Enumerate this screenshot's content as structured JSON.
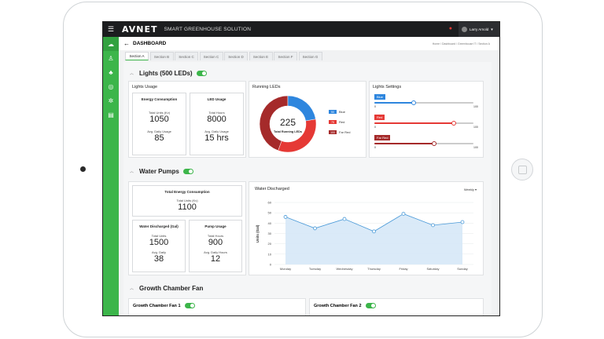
{
  "app": {
    "brand": "AVNET",
    "subtitle": "SMART GREENHOUSE SOLUTION",
    "user": "Larry Arnold"
  },
  "page": {
    "title": "DASHBOARD",
    "breadcrumb": "Home  /  Dashboard  /  Greenhouse IT  /  Section A"
  },
  "tabs": [
    "Section A",
    "Section B",
    "Section C",
    "Section C",
    "Section D",
    "Section E",
    "Section F",
    "Section G"
  ],
  "lights": {
    "title": "Lights (500 LEDs)",
    "usage": {
      "title": "Lights Usage",
      "energy": {
        "title": "Energy Consumption",
        "units_label": "Total Units (Kv)",
        "units": "1050",
        "daily_label": "Avg. Daily Usage",
        "daily": "85"
      },
      "led": {
        "title": "LED Usage",
        "hours_label": "Total Hours",
        "hours": "8000",
        "daily_label": "Avg. Daily Usage",
        "daily": "15 hrs"
      }
    },
    "running": {
      "title": "Running LEDs",
      "total": "225",
      "total_label": "Total Running LEDs",
      "segments": [
        {
          "name": "Blue",
          "value": 50,
          "color": "#2e86de"
        },
        {
          "name": "Red",
          "value": 75,
          "color": "#e53935"
        },
        {
          "name": "Far Red",
          "value": 100,
          "color": "#a52a2a"
        }
      ],
      "legend": [
        {
          "badge": "50",
          "name": "Blue",
          "color": "#2e86de"
        },
        {
          "badge": "75",
          "name": "Red",
          "color": "#e53935"
        },
        {
          "badge": "100",
          "name": "Far Red",
          "color": "#a52a2a"
        }
      ]
    },
    "settings": {
      "title": "Lights Settings",
      "sliders": [
        {
          "name": "Blue",
          "color": "#2e86de",
          "value": 40,
          "min": "0",
          "max": "100"
        },
        {
          "name": "Red",
          "color": "#e53935",
          "value": 80,
          "min": "0",
          "max": "100"
        },
        {
          "name": "Far Red",
          "color": "#a52a2a",
          "value": 60,
          "min": "0",
          "max": "100"
        }
      ]
    }
  },
  "pumps": {
    "title": "Water Pumps",
    "total_energy": {
      "title": "Total Energy Consumption",
      "units_label": "Total Units (Kv)",
      "units": "1100"
    },
    "discharged": {
      "title": "Water Discharged (Gal)",
      "total_label": "Total Units",
      "total": "1500",
      "daily_label": "Avg. Daily",
      "daily": "38"
    },
    "usage": {
      "title": "Pump Usage",
      "hours_label": "Total Hours",
      "hours": "900",
      "daily_label": "Avg. Daily Hours",
      "daily": "12"
    },
    "chart_title": "Water Discharged",
    "period": "Weekly"
  },
  "chart_data": {
    "type": "area",
    "title": "Water Discharged",
    "ylabel": "Units (Gal)",
    "xlabel": "",
    "categories": [
      "Monday",
      "Tuesday",
      "Wednesday",
      "Thursday",
      "Friday",
      "Saturday",
      "Sunday"
    ],
    "values": [
      46,
      35,
      44,
      32,
      49,
      38,
      41
    ],
    "ylim": [
      0,
      60
    ],
    "yticks": [
      "0",
      "10",
      "20",
      "30",
      "40",
      "50",
      "60"
    ]
  },
  "fan": {
    "title": "Growth Chamber Fan",
    "fan1": "Growth Chamber Fan 1",
    "fan2": "Growth Chamber Fan 2"
  }
}
